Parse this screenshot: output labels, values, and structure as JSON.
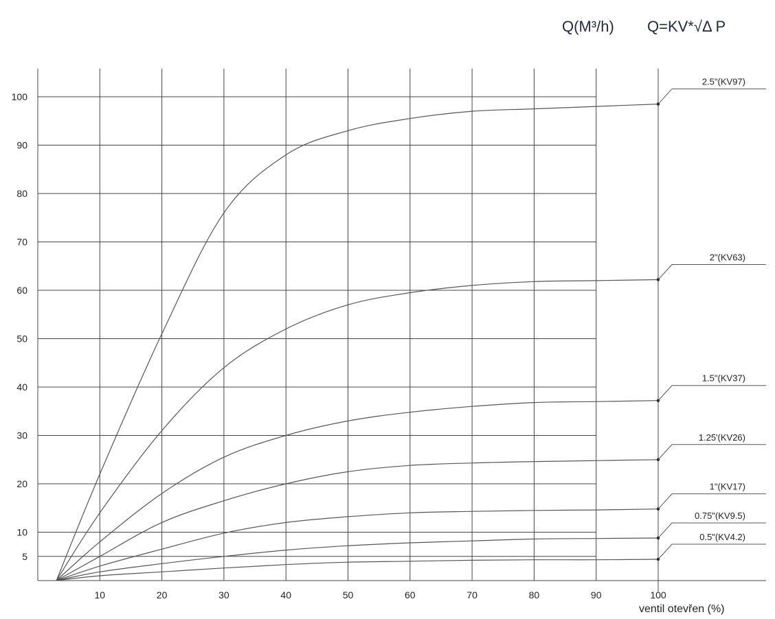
{
  "header": {
    "flow_unit": "Q(M³/h)",
    "formula": "Q=KV*√Δ P"
  },
  "chart_data": {
    "type": "line",
    "xlabel": "ventil otevřen (%)",
    "ylabel": "Q(M³/h)",
    "xlim": [
      0,
      100
    ],
    "ylim": [
      0,
      100
    ],
    "x_ticks": [
      10,
      20,
      30,
      40,
      50,
      60,
      70,
      80,
      90,
      100
    ],
    "y_ticks": [
      5,
      10,
      20,
      30,
      40,
      50,
      60,
      70,
      80,
      90,
      100
    ],
    "grid": true,
    "series": [
      {
        "name": "2.5\"(KV97)",
        "x": [
          3,
          10,
          20,
          30,
          40,
          50,
          60,
          70,
          80,
          90,
          100
        ],
        "y": [
          0,
          22,
          51,
          76,
          88,
          93,
          95.5,
          97,
          97.5,
          98,
          98.5
        ]
      },
      {
        "name": "2\"(KV63)",
        "x": [
          3,
          10,
          20,
          30,
          40,
          50,
          60,
          70,
          80,
          90,
          100
        ],
        "y": [
          0,
          14,
          31,
          44,
          52,
          57,
          59.5,
          61,
          61.8,
          62,
          62.2
        ]
      },
      {
        "name": "1.5\"(KV37)",
        "x": [
          3,
          10,
          20,
          30,
          40,
          50,
          60,
          70,
          80,
          90,
          100
        ],
        "y": [
          0,
          8,
          18,
          25.5,
          30,
          33,
          34.8,
          36,
          36.8,
          37,
          37.2
        ]
      },
      {
        "name": "1.25'(KV26)",
        "x": [
          3,
          10,
          20,
          30,
          40,
          50,
          60,
          70,
          80,
          90,
          100
        ],
        "y": [
          0,
          5,
          12,
          16.5,
          20,
          22.5,
          23.8,
          24.3,
          24.6,
          24.8,
          25
        ]
      },
      {
        "name": "1\"(KV17)",
        "x": [
          3,
          10,
          20,
          30,
          40,
          50,
          60,
          70,
          80,
          90,
          100
        ],
        "y": [
          0,
          3,
          6.5,
          9.8,
          12,
          13.2,
          14,
          14.3,
          14.5,
          14.6,
          14.8
        ]
      },
      {
        "name": "0.75\"(KV9.5)",
        "x": [
          3,
          10,
          20,
          30,
          40,
          50,
          60,
          70,
          80,
          90,
          100
        ],
        "y": [
          0,
          1.8,
          3.5,
          5,
          6.3,
          7.2,
          7.8,
          8.2,
          8.6,
          8.7,
          8.8
        ]
      },
      {
        "name": "0.5\"(KV4.2)",
        "x": [
          3,
          10,
          20,
          30,
          40,
          50,
          60,
          70,
          80,
          90,
          100
        ],
        "y": [
          0,
          1,
          1.8,
          2.6,
          3.3,
          3.8,
          4,
          4.2,
          4.3,
          4.3,
          4.4
        ]
      }
    ]
  }
}
